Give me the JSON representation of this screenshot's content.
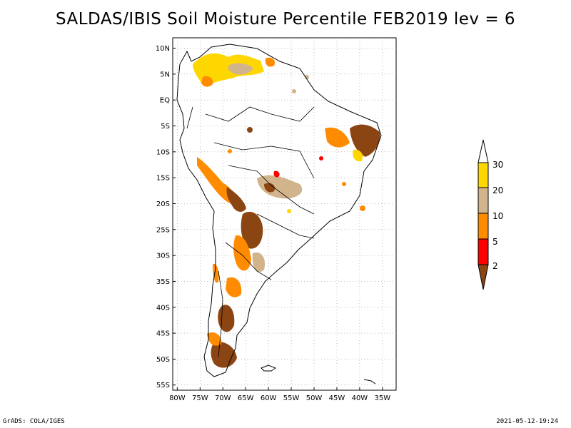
{
  "title": "SALDAS/IBIS Soil Moisture Percentile FEB2019 lev = 6",
  "footer": {
    "left": "GrADS: COLA/IGES",
    "right": "2021-05-12-19:24"
  },
  "map": {
    "lon_range": [
      -81,
      -32
    ],
    "lat_range": [
      -56,
      12
    ],
    "lon_ticks": [
      {
        "value": -80,
        "label": "80W"
      },
      {
        "value": -75,
        "label": "75W"
      },
      {
        "value": -70,
        "label": "70W"
      },
      {
        "value": -65,
        "label": "65W"
      },
      {
        "value": -60,
        "label": "60W"
      },
      {
        "value": -55,
        "label": "55W"
      },
      {
        "value": -50,
        "label": "50W"
      },
      {
        "value": -45,
        "label": "45W"
      },
      {
        "value": -40,
        "label": "40W"
      },
      {
        "value": -35,
        "label": "35W"
      }
    ],
    "lat_ticks": [
      {
        "value": 10,
        "label": "10N"
      },
      {
        "value": 5,
        "label": "5N"
      },
      {
        "value": 0,
        "label": "EQ"
      },
      {
        "value": -5,
        "label": "5S"
      },
      {
        "value": -10,
        "label": "10S"
      },
      {
        "value": -15,
        "label": "15S"
      },
      {
        "value": -20,
        "label": "20S"
      },
      {
        "value": -25,
        "label": "25S"
      },
      {
        "value": -30,
        "label": "30S"
      },
      {
        "value": -35,
        "label": "35S"
      },
      {
        "value": -40,
        "label": "40S"
      },
      {
        "value": -45,
        "label": "45S"
      },
      {
        "value": -50,
        "label": "50S"
      },
      {
        "value": -55,
        "label": "55S"
      }
    ],
    "grid": true
  },
  "colorbar": {
    "labels": [
      "30",
      "20",
      "10",
      "5",
      "2"
    ],
    "colors": [
      "#ffd700",
      "#d2b48c",
      "#ff8c00",
      "#ff0000",
      "#8b4513"
    ],
    "end_colors": {
      "top": "#ffffff",
      "bottom": "#8b4513"
    }
  },
  "chart_data": {
    "type": "heatmap",
    "title": "SALDAS/IBIS Soil Moisture Percentile FEB2019 lev = 6",
    "legend_levels": [
      2,
      5,
      10,
      20,
      30
    ],
    "legend_placement": "right",
    "colors": {
      "gt30": "#ffffff",
      "20-30": "#ffd700",
      "10-20": "#d2b48c",
      "5-10": "#ff8c00",
      "2-5": "#ff0000",
      "lt2": "#8b4513"
    }
  }
}
